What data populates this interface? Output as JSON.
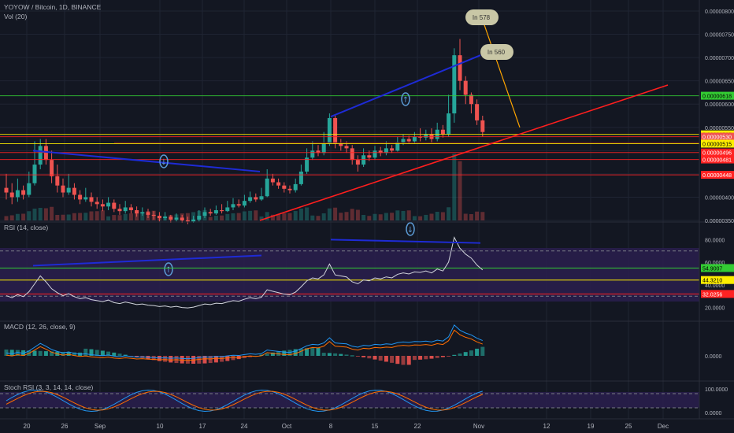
{
  "header": {
    "title": "YOYOW / Bitcoin, 1D, BINANCE",
    "vol": "Vol (20)"
  },
  "colors": {
    "bg": "#131722",
    "up": "#26a69a",
    "down": "#ef5350",
    "grid": "#1f2433",
    "text": "#b2b5be",
    "rsiLine": "#d1d4dc",
    "rsiBand": "#2a1f4d",
    "trend": "#1e2bd6",
    "trendRed": "#ff1e1e",
    "levelGreen": "#33cc33",
    "levelYellow": "#ffee00",
    "levelRed": "#ff2222",
    "macd": "#2196f3",
    "signal": "#ff6d00"
  },
  "xaxis": {
    "labels": [
      "20",
      "26",
      "Sep",
      "10",
      "17",
      "24",
      "Oct",
      "8",
      "15",
      "22",
      "Nov",
      "12",
      "19",
      "25",
      "Dec"
    ]
  },
  "price_axis": {
    "ticks": [
      "0.00000800",
      "0.00000750",
      "0.00000700",
      "0.00000650",
      "0.00000600",
      "0.00000550",
      "0.00000500",
      "0.00000450",
      "0.00000400",
      "0.00000350"
    ]
  },
  "price_tags": [
    {
      "text": "0.00000618",
      "color": "#33cc33",
      "fg": "#000000"
    },
    {
      "text": "0.00000535",
      "color": "#ffee00",
      "fg": "#000000"
    },
    {
      "text": "0.00000530",
      "color": "#ef5350",
      "fg": "#ffffff"
    },
    {
      "text": "0.00000515",
      "color": "#ffee00",
      "fg": "#000000"
    },
    {
      "text": "0.00000496",
      "color": "#ff2222",
      "fg": "#ffffff"
    },
    {
      "text": "0.00000481",
      "color": "#ff2222",
      "fg": "#ffffff"
    },
    {
      "text": "0.00000448",
      "color": "#ff2222",
      "fg": "#ffffff"
    }
  ],
  "callouts": [
    {
      "text": "In 578"
    },
    {
      "text": "In 560"
    }
  ],
  "rsi": {
    "title": "RSI (14, close)",
    "ticks": [
      "80.0000",
      "60.0000",
      "40.0000",
      "20.0000"
    ],
    "tags": [
      {
        "text": "54.9007",
        "color": "#33cc33",
        "fg": "#000000"
      },
      {
        "text": "44.3210",
        "color": "#ffee00",
        "fg": "#000000"
      },
      {
        "text": "32.0256",
        "color": "#ff2222",
        "fg": "#ffffff"
      }
    ]
  },
  "macd": {
    "title": "MACD (12, 26, close, 9)",
    "ticks": [
      "0.0000"
    ]
  },
  "stoch": {
    "title": "Stoch RSI (3, 3, 14, 14, close)",
    "ticks": [
      "100.0000",
      "0.0000"
    ]
  },
  "chart_data": {
    "type": "candlestick",
    "symbol": "YOYOW / Bitcoin",
    "interval": "1D",
    "exchange": "BINANCE",
    "price_range": [
      3.4e-06,
      8e-06
    ],
    "candles": [
      [
        420,
        410,
        450,
        395
      ],
      [
        410,
        400,
        430,
        385
      ],
      [
        400,
        415,
        440,
        390
      ],
      [
        415,
        405,
        425,
        395
      ],
      [
        405,
        430,
        455,
        400
      ],
      [
        430,
        470,
        520,
        425
      ],
      [
        470,
        510,
        525,
        460
      ],
      [
        510,
        480,
        525,
        470
      ],
      [
        480,
        445,
        500,
        430
      ],
      [
        445,
        425,
        470,
        410
      ],
      [
        425,
        410,
        440,
        400
      ],
      [
        410,
        420,
        450,
        405
      ],
      [
        420,
        405,
        430,
        395
      ],
      [
        405,
        395,
        415,
        385
      ],
      [
        395,
        400,
        420,
        390
      ],
      [
        400,
        390,
        410,
        380
      ],
      [
        390,
        385,
        400,
        375
      ],
      [
        385,
        380,
        395,
        370
      ],
      [
        380,
        388,
        400,
        372
      ],
      [
        388,
        375,
        395,
        368
      ],
      [
        375,
        370,
        385,
        362
      ],
      [
        370,
        378,
        392,
        365
      ],
      [
        378,
        372,
        385,
        365
      ],
      [
        372,
        365,
        380,
        358
      ],
      [
        365,
        368,
        378,
        360
      ],
      [
        368,
        362,
        375,
        355
      ],
      [
        362,
        360,
        370,
        352
      ],
      [
        360,
        355,
        368,
        348
      ],
      [
        355,
        358,
        368,
        350
      ],
      [
        358,
        352,
        362,
        345
      ],
      [
        352,
        356,
        365,
        348
      ],
      [
        356,
        350,
        362,
        345
      ],
      [
        350,
        348,
        358,
        342
      ],
      [
        348,
        352,
        360,
        345
      ],
      [
        352,
        360,
        372,
        348
      ],
      [
        360,
        368,
        378,
        355
      ],
      [
        368,
        365,
        375,
        360
      ],
      [
        365,
        372,
        382,
        362
      ],
      [
        372,
        370,
        385,
        365
      ],
      [
        370,
        378,
        392,
        368
      ],
      [
        378,
        385,
        398,
        372
      ],
      [
        385,
        382,
        395,
        378
      ],
      [
        382,
        392,
        405,
        378
      ],
      [
        392,
        400,
        412,
        388
      ],
      [
        400,
        395,
        408,
        390
      ],
      [
        395,
        402,
        420,
        392
      ],
      [
        402,
        440,
        460,
        400
      ],
      [
        440,
        432,
        450,
        425
      ],
      [
        432,
        425,
        440,
        418
      ],
      [
        425,
        418,
        432,
        410
      ],
      [
        418,
        415,
        425,
        408
      ],
      [
        415,
        428,
        440,
        410
      ],
      [
        428,
        455,
        470,
        425
      ],
      [
        455,
        485,
        505,
        450
      ],
      [
        485,
        500,
        520,
        480
      ],
      [
        500,
        495,
        512,
        488
      ],
      [
        495,
        515,
        540,
        490
      ],
      [
        515,
        570,
        580,
        510
      ],
      [
        570,
        515,
        575,
        505
      ],
      [
        515,
        510,
        525,
        500
      ],
      [
        510,
        505,
        520,
        495
      ],
      [
        505,
        480,
        512,
        470
      ],
      [
        480,
        470,
        490,
        455
      ],
      [
        470,
        490,
        505,
        465
      ],
      [
        490,
        485,
        500,
        478
      ],
      [
        485,
        500,
        510,
        480
      ],
      [
        500,
        495,
        508,
        488
      ],
      [
        495,
        505,
        520,
        490
      ],
      [
        505,
        500,
        512,
        495
      ],
      [
        500,
        518,
        530,
        498
      ],
      [
        518,
        525,
        535,
        512
      ],
      [
        525,
        520,
        532,
        515
      ],
      [
        520,
        530,
        540,
        515
      ],
      [
        530,
        528,
        548,
        520
      ],
      [
        528,
        535,
        545,
        522
      ],
      [
        535,
        525,
        548,
        518
      ],
      [
        525,
        545,
        560,
        520
      ],
      [
        545,
        535,
        555,
        528
      ],
      [
        535,
        580,
        620,
        530
      ],
      [
        580,
        705,
        720,
        560
      ],
      [
        705,
        650,
        740,
        630
      ],
      [
        650,
        620,
        660,
        600
      ],
      [
        620,
        600,
        625,
        580
      ],
      [
        600,
        565,
        610,
        555
      ],
      [
        565,
        540,
        575,
        530
      ]
    ]
  }
}
